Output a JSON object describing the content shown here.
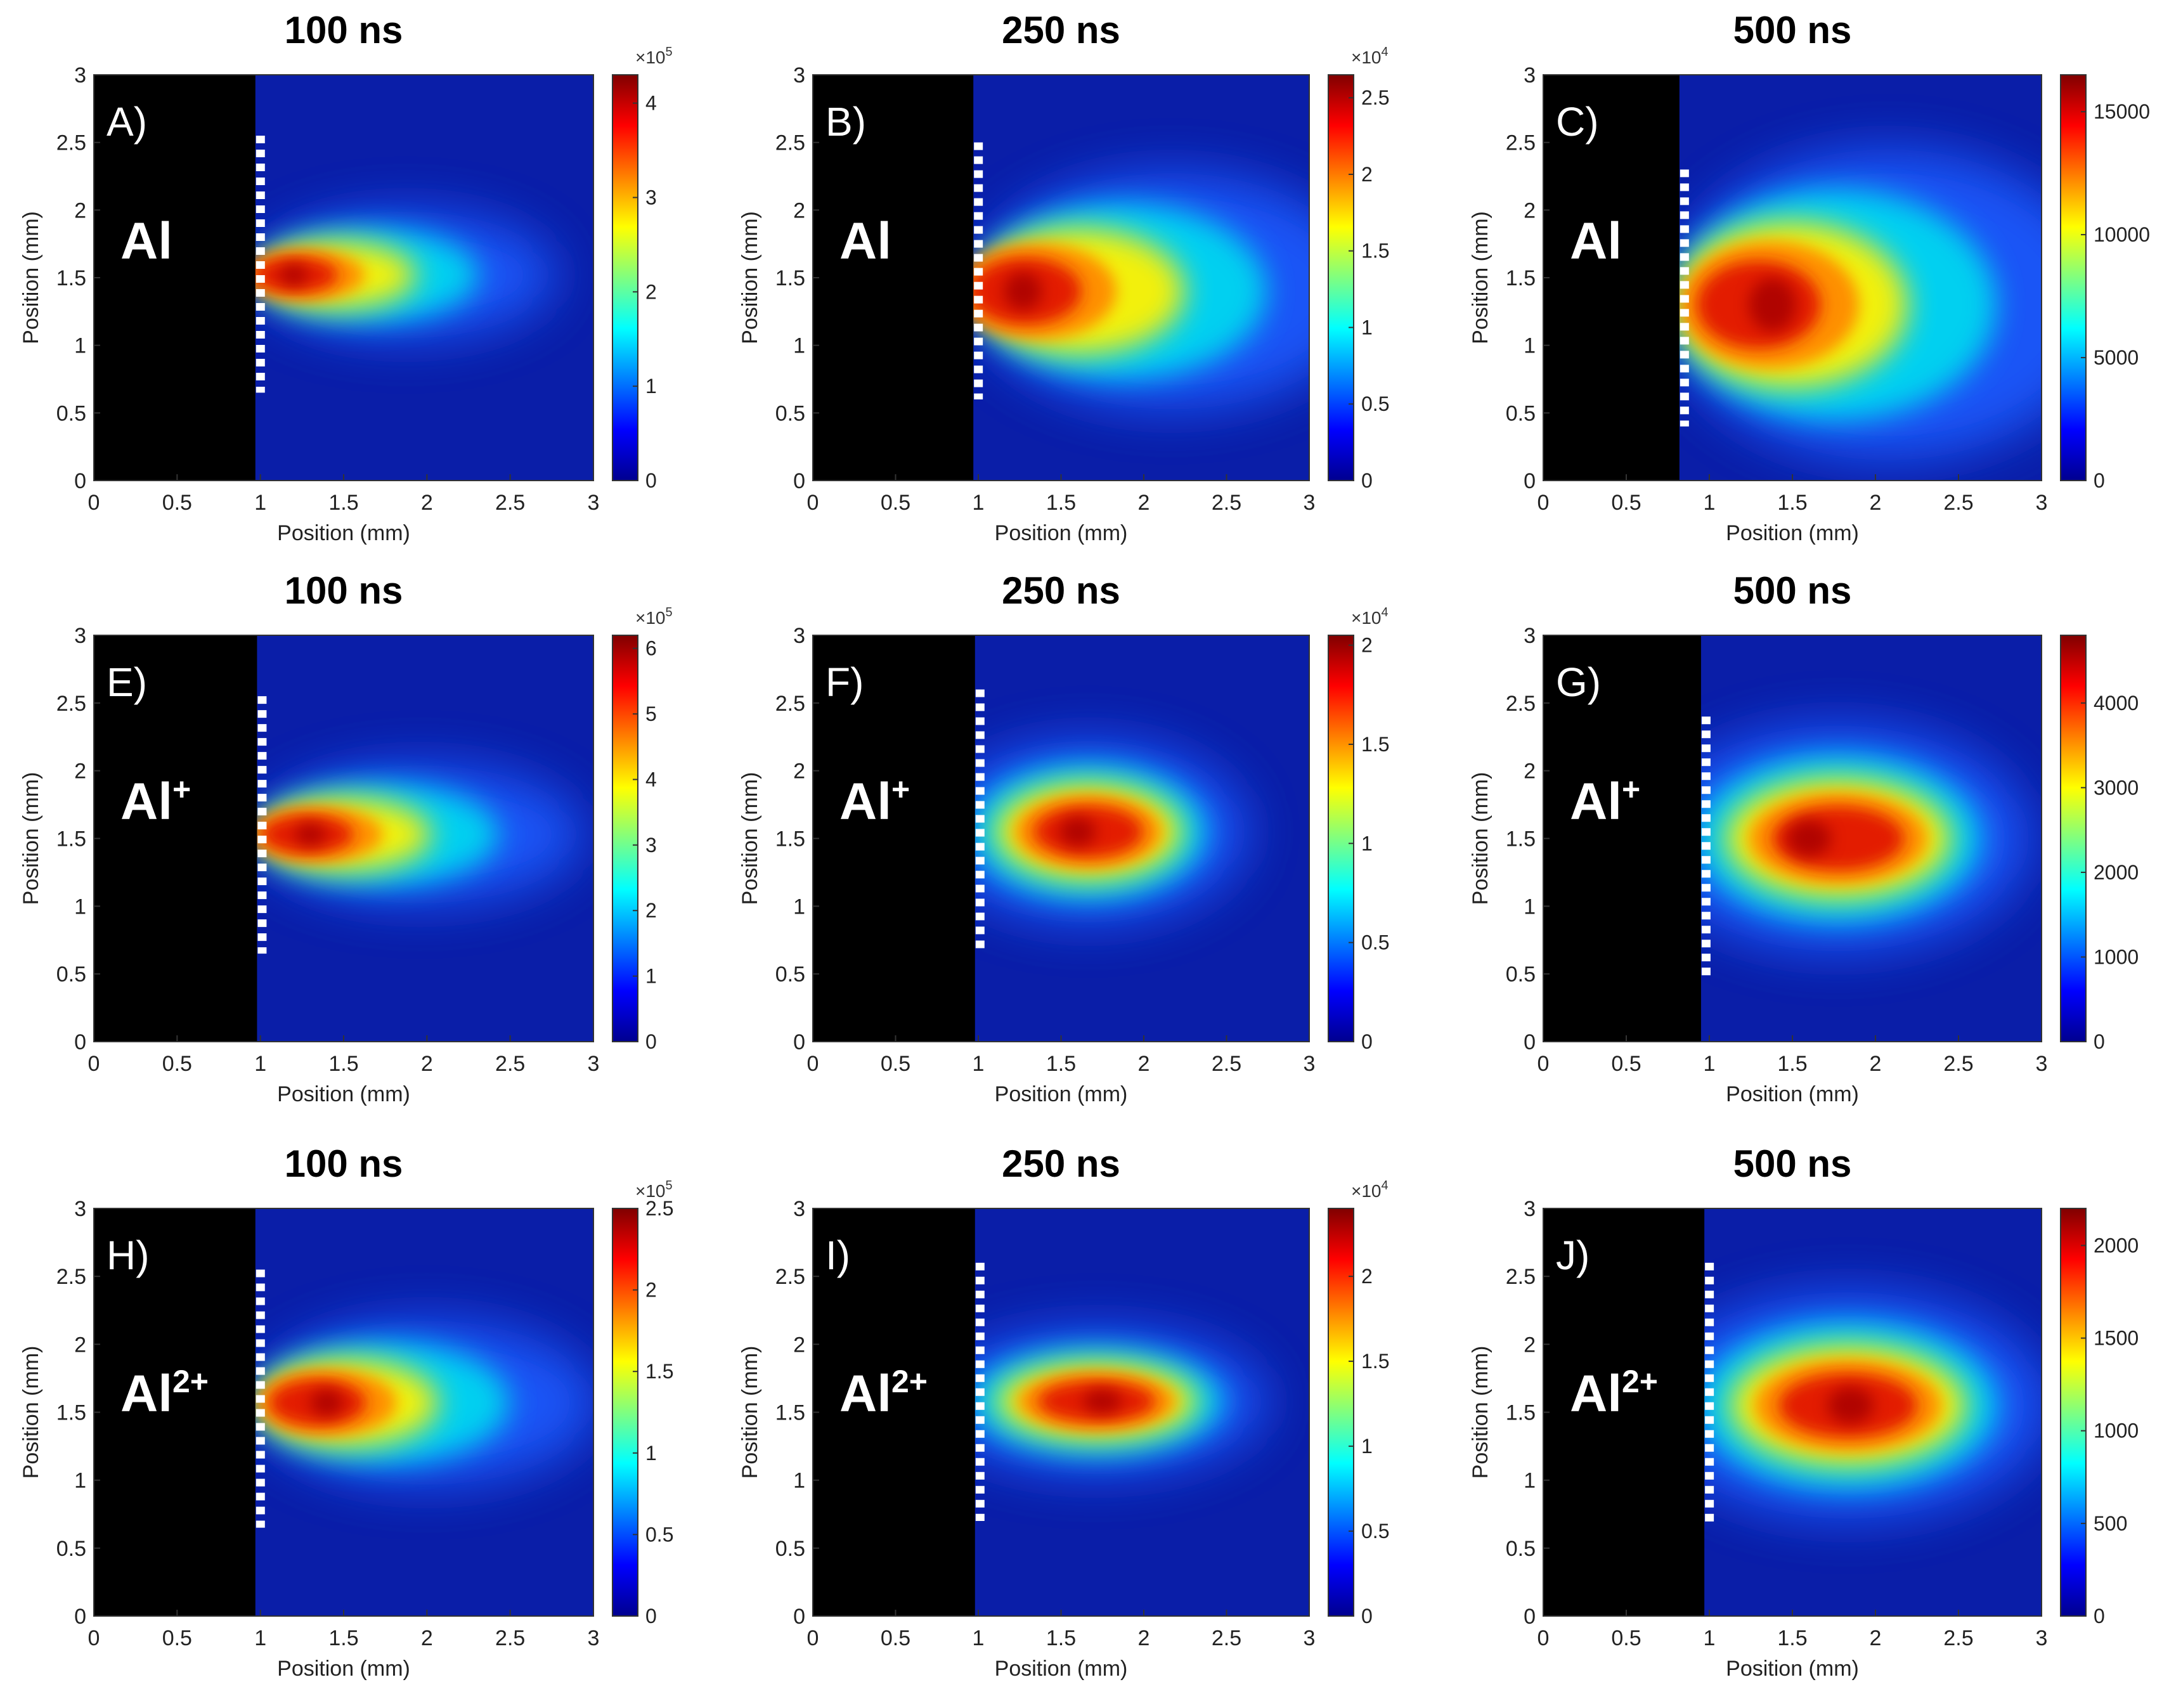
{
  "figure": {
    "axis_label_x": "Position (mm)",
    "axis_label_y": "Position (mm)"
  },
  "chart_data": [
    {
      "type": "heatmap",
      "title": "100 ns",
      "panel_label": "A)",
      "species": "Al",
      "species_charge": "",
      "xlabel": "Position (mm)",
      "ylabel": "Position (mm)",
      "xlim": [
        0,
        3
      ],
      "ylim": [
        0,
        3
      ],
      "x_ticks": [
        "0",
        "0.5",
        "1",
        "1.5",
        "2",
        "2.5",
        "3"
      ],
      "y_ticks": [
        "0",
        "0.5",
        "1",
        "1.5",
        "2",
        "2.5",
        "3"
      ],
      "target_edge_mm": 0.97,
      "dashed_marker_y_range": [
        0.65,
        2.55
      ],
      "emission": {
        "peak_x": 1.2,
        "peak_y": 1.52,
        "reach_x": 2.05,
        "half_height": 0.35,
        "shape": "cone"
      },
      "colorbar": {
        "min": 0,
        "max": 430000,
        "exponent_base": "×10",
        "exponent": "5",
        "ticks": [
          "0",
          "1",
          "2",
          "3",
          "4"
        ],
        "tick_values": [
          0,
          100000,
          200000,
          300000,
          400000
        ]
      }
    },
    {
      "type": "heatmap",
      "title": "250 ns",
      "panel_label": "B)",
      "species": "Al",
      "species_charge": "",
      "xlabel": "Position (mm)",
      "ylabel": "Position (mm)",
      "xlim": [
        0,
        3
      ],
      "ylim": [
        0,
        3
      ],
      "x_ticks": [
        "0",
        "0.5",
        "1",
        "1.5",
        "2",
        "2.5",
        "3"
      ],
      "y_ticks": [
        "0",
        "0.5",
        "1",
        "1.5",
        "2",
        "2.5",
        "3"
      ],
      "target_edge_mm": 0.97,
      "dashed_marker_y_range": [
        0.6,
        2.5
      ],
      "emission": {
        "peak_x": 1.27,
        "peak_y": 1.4,
        "reach_x": 2.4,
        "half_height": 0.65,
        "shape": "cone"
      },
      "colorbar": {
        "min": 0,
        "max": 26500,
        "exponent_base": "×10",
        "exponent": "4",
        "ticks": [
          "0",
          "0.5",
          "1",
          "1.5",
          "2",
          "2.5"
        ],
        "tick_values": [
          0,
          5000,
          10000,
          15000,
          20000,
          25000
        ]
      }
    },
    {
      "type": "heatmap",
      "title": "500 ns",
      "panel_label": "C)",
      "species": "Al",
      "species_charge": "",
      "xlabel": "Position (mm)",
      "ylabel": "Position (mm)",
      "xlim": [
        0,
        3
      ],
      "ylim": [
        0,
        3
      ],
      "x_ticks": [
        "0",
        "0.5",
        "1",
        "1.5",
        "2",
        "2.5",
        "3"
      ],
      "y_ticks": [
        "0",
        "0.5",
        "1",
        "1.5",
        "2",
        "2.5",
        "3"
      ],
      "target_edge_mm": 0.82,
      "dashed_marker_y_range": [
        0.4,
        2.3
      ],
      "emission": {
        "peak_x": 1.38,
        "peak_y": 1.3,
        "reach_x": 2.6,
        "half_height": 0.9,
        "shape": "cloud"
      },
      "colorbar": {
        "min": 0,
        "max": 16500,
        "exponent_base": "",
        "exponent": "",
        "ticks": [
          "0",
          "5000",
          "10000",
          "15000"
        ],
        "tick_values": [
          0,
          5000,
          10000,
          15000
        ]
      }
    },
    {
      "type": "heatmap",
      "title": "100 ns",
      "panel_label": "E)",
      "species": "Al",
      "species_charge": "+",
      "xlabel": "Position (mm)",
      "ylabel": "Position (mm)",
      "xlim": [
        0,
        3
      ],
      "ylim": [
        0,
        3
      ],
      "x_ticks": [
        "0",
        "0.5",
        "1",
        "1.5",
        "2",
        "2.5",
        "3"
      ],
      "y_ticks": [
        "0",
        "0.5",
        "1",
        "1.5",
        "2",
        "2.5",
        "3"
      ],
      "target_edge_mm": 0.98,
      "dashed_marker_y_range": [
        0.65,
        2.55
      ],
      "emission": {
        "peak_x": 1.3,
        "peak_y": 1.53,
        "reach_x": 2.15,
        "half_height": 0.38,
        "shape": "cone"
      },
      "colorbar": {
        "min": 0,
        "max": 620000,
        "exponent_base": "×10",
        "exponent": "5",
        "ticks": [
          "0",
          "1",
          "2",
          "3",
          "4",
          "5",
          "6"
        ],
        "tick_values": [
          0,
          100000,
          200000,
          300000,
          400000,
          500000,
          600000
        ]
      }
    },
    {
      "type": "heatmap",
      "title": "250 ns",
      "panel_label": "F)",
      "species": "Al",
      "species_charge": "+",
      "xlabel": "Position (mm)",
      "ylabel": "Position (mm)",
      "xlim": [
        0,
        3
      ],
      "ylim": [
        0,
        3
      ],
      "x_ticks": [
        "0",
        "0.5",
        "1",
        "1.5",
        "2",
        "2.5",
        "3"
      ],
      "y_ticks": [
        "0",
        "0.5",
        "1",
        "1.5",
        "2",
        "2.5",
        "3"
      ],
      "target_edge_mm": 0.98,
      "dashed_marker_y_range": [
        0.65,
        2.6
      ],
      "emission": {
        "peak_x": 1.6,
        "peak_y": 1.55,
        "reach_x": 2.35,
        "half_height": 0.5,
        "shape": "rounded"
      },
      "colorbar": {
        "min": 0,
        "max": 20500,
        "exponent_base": "×10",
        "exponent": "4",
        "ticks": [
          "0",
          "0.5",
          "1",
          "1.5",
          "2"
        ],
        "tick_values": [
          0,
          5000,
          10000,
          15000,
          20000
        ]
      }
    },
    {
      "type": "heatmap",
      "title": "500 ns",
      "panel_label": "G)",
      "species": "Al",
      "species_charge": "+",
      "xlabel": "Position (mm)",
      "ylabel": "Position (mm)",
      "xlim": [
        0,
        3
      ],
      "ylim": [
        0,
        3
      ],
      "x_ticks": [
        "0",
        "0.5",
        "1",
        "1.5",
        "2",
        "2.5",
        "3"
      ],
      "y_ticks": [
        "0",
        "0.5",
        "1",
        "1.5",
        "2",
        "2.5",
        "3"
      ],
      "target_edge_mm": 0.95,
      "dashed_marker_y_range": [
        0.45,
        2.4
      ],
      "emission": {
        "peak_x": 1.6,
        "peak_y": 1.5,
        "reach_x": 2.6,
        "half_height": 0.62,
        "shape": "rounded"
      },
      "colorbar": {
        "min": 0,
        "max": 4800,
        "exponent_base": "",
        "exponent": "",
        "ticks": [
          "0",
          "1000",
          "2000",
          "3000",
          "4000"
        ],
        "tick_values": [
          0,
          1000,
          2000,
          3000,
          4000
        ]
      }
    },
    {
      "type": "heatmap",
      "title": "100 ns",
      "panel_label": "H)",
      "species": "Al",
      "species_charge": "2+",
      "xlabel": "Position (mm)",
      "ylabel": "Position (mm)",
      "xlim": [
        0,
        3
      ],
      "ylim": [
        0,
        3
      ],
      "x_ticks": [
        "0",
        "0.5",
        "1",
        "1.5",
        "2",
        "2.5",
        "3"
      ],
      "y_ticks": [
        "0",
        "0.5",
        "1",
        "1.5",
        "2",
        "2.5",
        "3"
      ],
      "target_edge_mm": 0.97,
      "dashed_marker_y_range": [
        0.65,
        2.55
      ],
      "emission": {
        "peak_x": 1.4,
        "peak_y": 1.57,
        "reach_x": 2.2,
        "half_height": 0.45,
        "shape": "cone"
      },
      "colorbar": {
        "min": 0,
        "max": 250000,
        "exponent_base": "×10",
        "exponent": "5",
        "ticks": [
          "0",
          "0.5",
          "1",
          "1.5",
          "2",
          "2.5"
        ],
        "tick_values": [
          0,
          50000,
          100000,
          150000,
          200000,
          250000
        ]
      }
    },
    {
      "type": "heatmap",
      "title": "250 ns",
      "panel_label": "I)",
      "species": "Al",
      "species_charge": "2+",
      "xlabel": "Position (mm)",
      "ylabel": "Position (mm)",
      "xlim": [
        0,
        3
      ],
      "ylim": [
        0,
        3
      ],
      "x_ticks": [
        "0",
        "0.5",
        "1",
        "1.5",
        "2",
        "2.5",
        "3"
      ],
      "y_ticks": [
        "0",
        "0.5",
        "1",
        "1.5",
        "2",
        "2.5",
        "3"
      ],
      "target_edge_mm": 0.98,
      "dashed_marker_y_range": [
        0.7,
        2.6
      ],
      "emission": {
        "peak_x": 1.75,
        "peak_y": 1.58,
        "reach_x": 2.45,
        "half_height": 0.4,
        "shape": "rounded"
      },
      "colorbar": {
        "min": 0,
        "max": 24000,
        "exponent_base": "×10",
        "exponent": "4",
        "ticks": [
          "0",
          "0.5",
          "1",
          "1.5",
          "2"
        ],
        "tick_values": [
          0,
          5000,
          10000,
          15000,
          20000
        ]
      }
    },
    {
      "type": "heatmap",
      "title": "500 ns",
      "panel_label": "J)",
      "species": "Al",
      "species_charge": "2+",
      "xlabel": "Position (mm)",
      "ylabel": "Position (mm)",
      "xlim": [
        0,
        3
      ],
      "ylim": [
        0,
        3
      ],
      "x_ticks": [
        "0",
        "0.5",
        "1",
        "1.5",
        "2",
        "2.5",
        "3"
      ],
      "y_ticks": [
        "0",
        "0.5",
        "1",
        "1.5",
        "2",
        "2.5",
        "3"
      ],
      "target_edge_mm": 0.97,
      "dashed_marker_y_range": [
        0.65,
        2.6
      ],
      "emission": {
        "peak_x": 1.85,
        "peak_y": 1.55,
        "reach_x": 2.7,
        "half_height": 0.62,
        "shape": "rounded"
      },
      "colorbar": {
        "min": 0,
        "max": 2200,
        "exponent_base": "",
        "exponent": "",
        "ticks": [
          "0",
          "500",
          "1000",
          "1500",
          "2000"
        ],
        "tick_values": [
          0,
          500,
          1000,
          1500,
          2000
        ]
      }
    }
  ]
}
